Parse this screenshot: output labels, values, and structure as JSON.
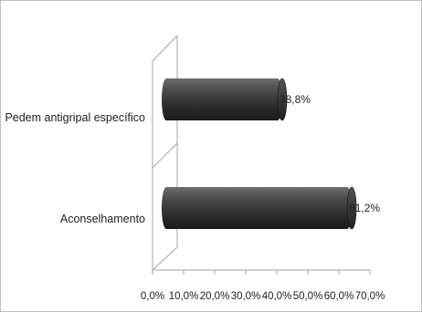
{
  "chart_data": {
    "type": "bar",
    "orientation": "horizontal",
    "style": "3d-cylinder",
    "categories": [
      "Aconselhamento",
      "Pedem antigripal específico"
    ],
    "values": [
      61.2,
      38.8
    ],
    "data_labels": [
      "61,2%",
      "38,8%"
    ],
    "xticks": [
      "0,0%",
      "10,0%",
      "20,0%",
      "30,0%",
      "40,0%",
      "50,0%",
      "60,0%",
      "70,0%"
    ],
    "xlim": [
      0,
      70
    ],
    "title": "",
    "xlabel": "",
    "ylabel": "",
    "grid": false,
    "legend": "none",
    "bar_color": "#3d3d3d"
  }
}
